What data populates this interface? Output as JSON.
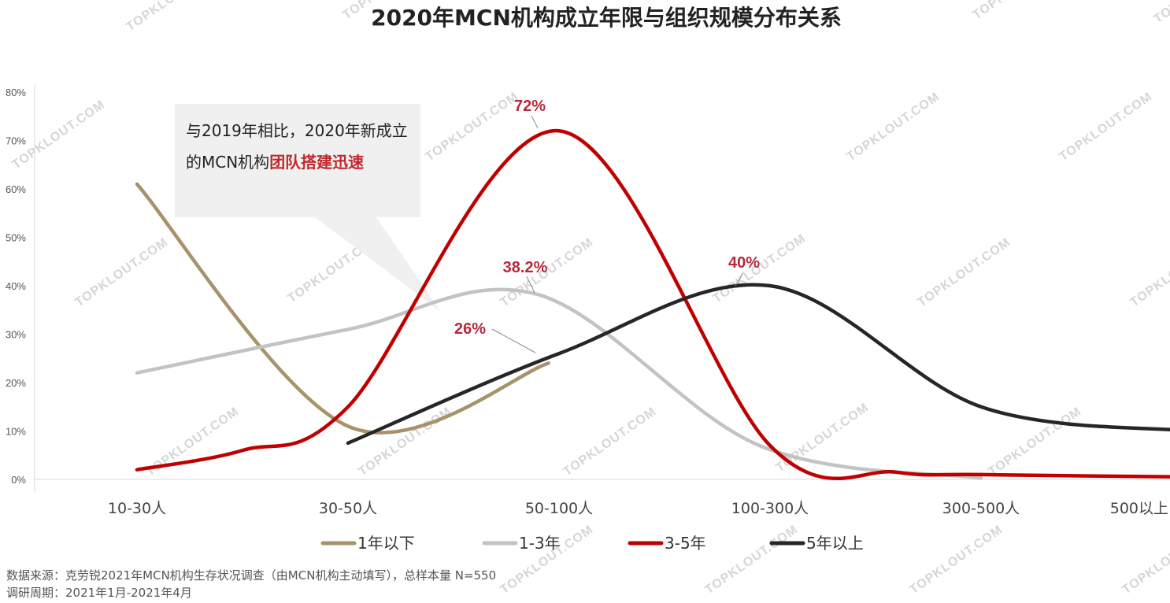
{
  "watermark": "TOPKLOUT.COM",
  "annotation": {
    "text_before": "与2019年相比，2020年新成立的MCN机构",
    "text_highlight": "团队搭建迅速"
  },
  "footer": {
    "source": "数据来源：克劳锐2021年MCN机构生存状况调查（由MCN机构主动填写），总样本量 N=550",
    "period": "调研周期：2021年1月-2021年4月"
  },
  "chart_data": {
    "type": "line",
    "title": "2020年MCN机构成立年限与组织规模分布关系",
    "xlabel": "",
    "ylabel": "",
    "categories": [
      "10-30人",
      "30-50人",
      "50-100人",
      "100-300人",
      "300-500人",
      "500以上"
    ],
    "ylim": [
      0,
      80
    ],
    "yticks": [
      "0%",
      "10%",
      "20%",
      "30%",
      "40%",
      "50%",
      "60%",
      "70%",
      "80%"
    ],
    "grid": false,
    "legend_position": "bottom",
    "series": [
      {
        "name": "1年以下",
        "color": "#a8916b",
        "x": [
          0,
          1,
          1.95
        ],
        "values": [
          61,
          11,
          24
        ]
      },
      {
        "name": "1-3年",
        "color": "#c3c3c3",
        "x": [
          0,
          1,
          1.9,
          2.95,
          4
        ],
        "values": [
          22,
          31,
          38.2,
          7,
          0.3
        ]
      },
      {
        "name": "3-5年",
        "color": "#c00000",
        "x": [
          0,
          0.5,
          1,
          2,
          3,
          3.6,
          4,
          5
        ],
        "values": [
          2,
          6,
          15,
          72,
          7,
          1.5,
          1,
          0.5
        ]
      },
      {
        "name": "5年以上",
        "color": "#262626",
        "x": [
          1,
          2,
          3,
          4,
          5
        ],
        "values": [
          7.5,
          26,
          40,
          15,
          10
        ]
      }
    ],
    "data_labels": [
      {
        "text": "72%",
        "series": "3-5年",
        "category": "50-100人"
      },
      {
        "text": "38.2%",
        "series": "1-3年",
        "category": "50-100人"
      },
      {
        "text": "26%",
        "series": "5年以上",
        "category": "50-100人"
      },
      {
        "text": "40%",
        "series": "5年以上",
        "category": "100-300人"
      }
    ]
  }
}
